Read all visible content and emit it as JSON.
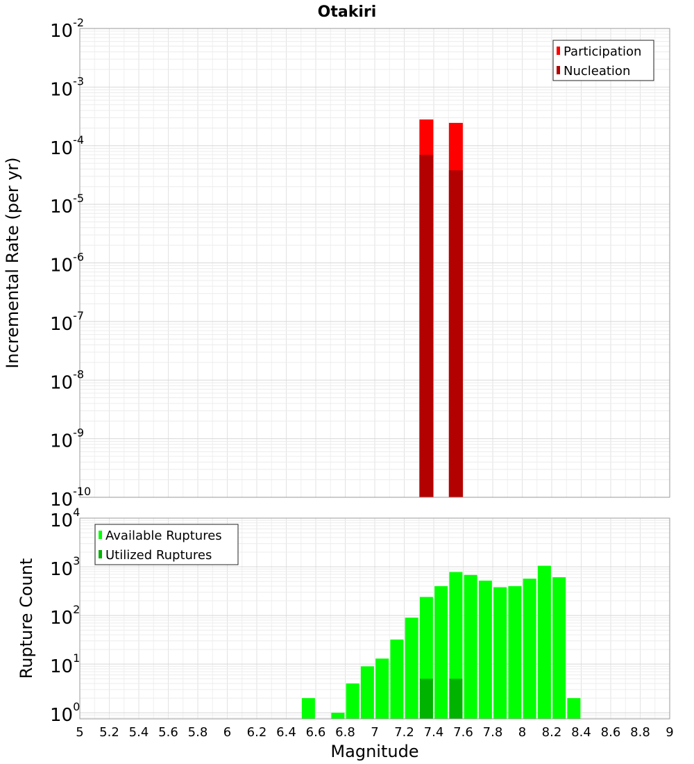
{
  "chart_data": [
    {
      "type": "bar",
      "title": "Otakiri",
      "ylabel": "Incremental Rate (per yr)",
      "yscale": "log",
      "ylim": [
        1e-10,
        0.01
      ],
      "xlim": [
        5,
        9
      ],
      "bin_width": 0.1,
      "legend_position": "top-right",
      "series": [
        {
          "name": "Participation",
          "color": "#ff0000",
          "points": [
            {
              "x": 7.35,
              "y": 0.00028
            },
            {
              "x": 7.55,
              "y": 0.000245
            }
          ]
        },
        {
          "name": "Nucleation",
          "color": "#b30000",
          "points": [
            {
              "x": 7.35,
              "y": 7e-05
            },
            {
              "x": 7.55,
              "y": 3.8e-05
            }
          ]
        }
      ]
    },
    {
      "type": "bar",
      "xlabel": "Magnitude",
      "ylabel": "Rupture Count",
      "yscale": "log",
      "ylim": [
        0.75,
        10000
      ],
      "xlim": [
        5,
        9
      ],
      "bin_width": 0.1,
      "legend_position": "top-left",
      "x_ticks": [
        "5",
        "5.2",
        "5.4",
        "5.6",
        "5.8",
        "6",
        "6.2",
        "6.4",
        "6.6",
        "6.8",
        "7",
        "7.2",
        "7.4",
        "7.6",
        "7.8",
        "8",
        "8.2",
        "8.4",
        "8.6",
        "8.8",
        "9"
      ],
      "series": [
        {
          "name": "Available Ruptures",
          "color": "#00ff00",
          "points": [
            {
              "x": 6.55,
              "y": 2
            },
            {
              "x": 6.75,
              "y": 1
            },
            {
              "x": 6.85,
              "y": 4
            },
            {
              "x": 6.95,
              "y": 9
            },
            {
              "x": 7.05,
              "y": 13
            },
            {
              "x": 7.15,
              "y": 32
            },
            {
              "x": 7.25,
              "y": 90
            },
            {
              "x": 7.35,
              "y": 240
            },
            {
              "x": 7.45,
              "y": 400
            },
            {
              "x": 7.55,
              "y": 780
            },
            {
              "x": 7.65,
              "y": 680
            },
            {
              "x": 7.75,
              "y": 520
            },
            {
              "x": 7.85,
              "y": 380
            },
            {
              "x": 7.95,
              "y": 400
            },
            {
              "x": 8.05,
              "y": 570
            },
            {
              "x": 8.15,
              "y": 1050
            },
            {
              "x": 8.25,
              "y": 610
            },
            {
              "x": 8.35,
              "y": 2
            }
          ]
        },
        {
          "name": "Utilized Ruptures",
          "color": "#00b300",
          "points": [
            {
              "x": 7.35,
              "y": 5
            },
            {
              "x": 7.55,
              "y": 5
            }
          ]
        }
      ]
    }
  ]
}
